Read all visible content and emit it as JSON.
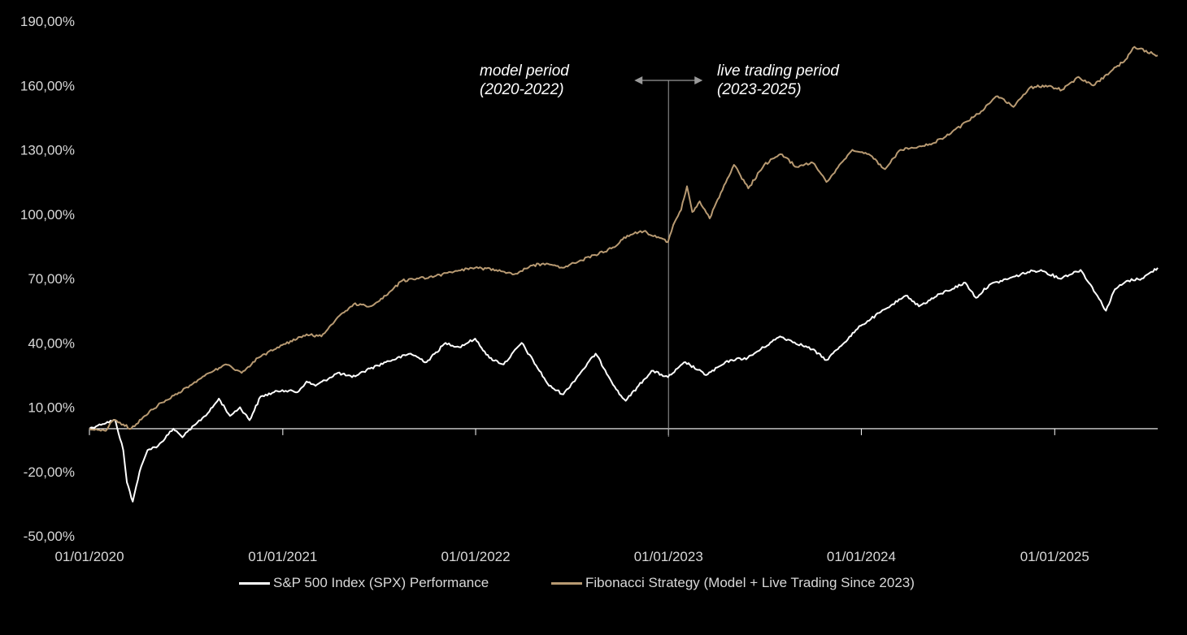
{
  "chart_data": {
    "type": "line",
    "title": "",
    "xlabel": "",
    "ylabel": "",
    "ylim": [
      -50,
      190
    ],
    "xlim": [
      "2020-01-01",
      "2025-07-15"
    ],
    "grid": false,
    "legend_position": "bottom",
    "y_ticks": [
      "-50,00%",
      "-20,00%",
      "10,00%",
      "40,00%",
      "70,00%",
      "100,00%",
      "130,00%",
      "160,00%",
      "190,00%"
    ],
    "x_ticks": [
      "01/01/2020",
      "01/01/2021",
      "01/01/2022",
      "01/01/2023",
      "01/01/2024",
      "01/01/2025"
    ],
    "divider_date": "2023-01-01",
    "annotations": {
      "left_line1": "model period",
      "left_line2": "(2020-2022)",
      "right_line1": "live trading period",
      "right_line2": "(2023-2025)"
    },
    "series": [
      {
        "name": "S&P 500 Index (SPX) Performance",
        "color": "#ffffff",
        "points": [
          [
            "2020-01-01",
            0
          ],
          [
            "2020-01-20",
            2
          ],
          [
            "2020-02-19",
            4
          ],
          [
            "2020-03-05",
            -10
          ],
          [
            "2020-03-12",
            -25
          ],
          [
            "2020-03-23",
            -34
          ],
          [
            "2020-04-05",
            -20
          ],
          [
            "2020-04-20",
            -10
          ],
          [
            "2020-05-10",
            -8
          ],
          [
            "2020-06-08",
            0
          ],
          [
            "2020-06-25",
            -4
          ],
          [
            "2020-07-20",
            2
          ],
          [
            "2020-08-15",
            8
          ],
          [
            "2020-09-02",
            14
          ],
          [
            "2020-09-23",
            6
          ],
          [
            "2020-10-12",
            10
          ],
          [
            "2020-10-30",
            4
          ],
          [
            "2020-11-20",
            15
          ],
          [
            "2020-12-31",
            18
          ],
          [
            "2021-01-29",
            17
          ],
          [
            "2021-02-15",
            22
          ],
          [
            "2021-03-04",
            20
          ],
          [
            "2021-04-15",
            26
          ],
          [
            "2021-05-12",
            24
          ],
          [
            "2021-06-15",
            28
          ],
          [
            "2021-07-15",
            31
          ],
          [
            "2021-08-31",
            35
          ],
          [
            "2021-09-30",
            31
          ],
          [
            "2021-11-05",
            40
          ],
          [
            "2021-12-01",
            38
          ],
          [
            "2021-12-31",
            42
          ],
          [
            "2022-01-27",
            33
          ],
          [
            "2022-02-23",
            30
          ],
          [
            "2022-03-29",
            40
          ],
          [
            "2022-05-20",
            20
          ],
          [
            "2022-06-16",
            16
          ],
          [
            "2022-08-16",
            35
          ],
          [
            "2022-09-30",
            16
          ],
          [
            "2022-10-12",
            13
          ],
          [
            "2022-11-30",
            27
          ],
          [
            "2022-12-31",
            24
          ],
          [
            "2023-02-02",
            31
          ],
          [
            "2023-03-13",
            25
          ],
          [
            "2023-04-28",
            32
          ],
          [
            "2023-05-31",
            33
          ],
          [
            "2023-07-31",
            43
          ],
          [
            "2023-09-30",
            37
          ],
          [
            "2023-10-27",
            32
          ],
          [
            "2023-12-31",
            48
          ],
          [
            "2024-02-29",
            58
          ],
          [
            "2024-03-28",
            62
          ],
          [
            "2024-04-19",
            57
          ],
          [
            "2024-05-31",
            63
          ],
          [
            "2024-07-16",
            68
          ],
          [
            "2024-08-05",
            61
          ],
          [
            "2024-08-30",
            67
          ],
          [
            "2024-10-18",
            71
          ],
          [
            "2024-11-11",
            73
          ],
          [
            "2024-12-06",
            74
          ],
          [
            "2025-01-10",
            70
          ],
          [
            "2025-02-19",
            74
          ],
          [
            "2025-03-13",
            66
          ],
          [
            "2025-04-08",
            55
          ],
          [
            "2025-04-25",
            65
          ],
          [
            "2025-05-20",
            69
          ],
          [
            "2025-06-15",
            70
          ],
          [
            "2025-07-15",
            75
          ]
        ]
      },
      {
        "name": "Fibonacci Strategy (Model + Live Trading Since 2023)",
        "color": "#b89a72",
        "points": [
          [
            "2020-01-01",
            0
          ],
          [
            "2020-02-01",
            -1
          ],
          [
            "2020-02-15",
            4
          ],
          [
            "2020-03-05",
            2
          ],
          [
            "2020-03-20",
            0
          ],
          [
            "2020-04-15",
            6
          ],
          [
            "2020-05-15",
            12
          ],
          [
            "2020-06-15",
            16
          ],
          [
            "2020-07-15",
            21
          ],
          [
            "2020-08-15",
            26
          ],
          [
            "2020-09-15",
            30
          ],
          [
            "2020-10-15",
            26
          ],
          [
            "2020-11-15",
            33
          ],
          [
            "2020-12-31",
            39
          ],
          [
            "2021-02-15",
            44
          ],
          [
            "2021-03-15",
            43
          ],
          [
            "2021-04-15",
            52
          ],
          [
            "2021-05-15",
            58
          ],
          [
            "2021-06-15",
            57
          ],
          [
            "2021-07-15",
            62
          ],
          [
            "2021-08-15",
            69
          ],
          [
            "2021-09-15",
            70
          ],
          [
            "2021-10-15",
            71
          ],
          [
            "2021-11-15",
            73
          ],
          [
            "2021-12-31",
            75
          ],
          [
            "2022-02-15",
            74
          ],
          [
            "2022-03-15",
            72
          ],
          [
            "2022-04-15",
            76
          ],
          [
            "2022-05-15",
            77
          ],
          [
            "2022-06-15",
            75
          ],
          [
            "2022-07-15",
            78
          ],
          [
            "2022-08-15",
            81
          ],
          [
            "2022-09-15",
            84
          ],
          [
            "2022-10-15",
            90
          ],
          [
            "2022-11-15",
            92
          ],
          [
            "2022-12-31",
            87
          ],
          [
            "2023-01-10",
            95
          ],
          [
            "2023-01-25",
            102
          ],
          [
            "2023-02-05",
            113
          ],
          [
            "2023-02-15",
            101
          ],
          [
            "2023-03-01",
            106
          ],
          [
            "2023-03-20",
            98
          ],
          [
            "2023-04-10",
            110
          ],
          [
            "2023-05-05",
            123
          ],
          [
            "2023-06-01",
            112
          ],
          [
            "2023-07-01",
            123
          ],
          [
            "2023-08-01",
            128
          ],
          [
            "2023-09-01",
            122
          ],
          [
            "2023-10-01",
            124
          ],
          [
            "2023-10-27",
            115
          ],
          [
            "2023-12-15",
            130
          ],
          [
            "2024-01-15",
            128
          ],
          [
            "2024-02-15",
            121
          ],
          [
            "2024-03-15",
            130
          ],
          [
            "2024-05-15",
            133
          ],
          [
            "2024-06-15",
            137
          ],
          [
            "2024-08-15",
            148
          ],
          [
            "2024-09-15",
            155
          ],
          [
            "2024-10-15",
            150
          ],
          [
            "2024-11-15",
            159
          ],
          [
            "2024-12-15",
            160
          ],
          [
            "2025-01-15",
            158
          ],
          [
            "2025-02-15",
            164
          ],
          [
            "2025-03-15",
            160
          ],
          [
            "2025-04-15",
            166
          ],
          [
            "2025-05-15",
            172
          ],
          [
            "2025-06-01",
            178
          ],
          [
            "2025-07-15",
            174
          ]
        ]
      }
    ]
  }
}
